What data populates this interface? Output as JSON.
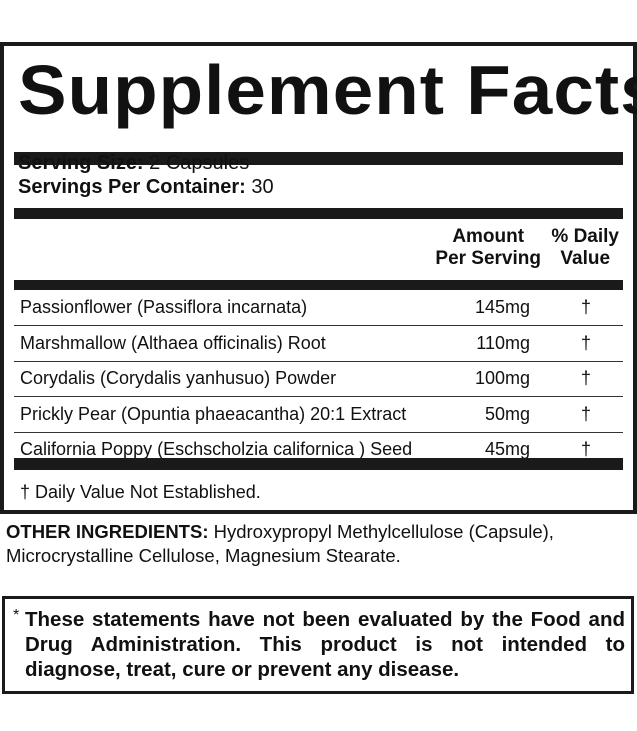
{
  "title": "Supplement Facts",
  "serving": {
    "size_label": "Serving Size:",
    "size_value": " 2 Capsules",
    "per_container_label": "Servings Per Container:",
    "per_container_value": " 30"
  },
  "columns": {
    "amount_line1": "Amount",
    "amount_line2": "Per Serving",
    "dv_line1": "% Daily",
    "dv_line2": "Value"
  },
  "ingredients": [
    {
      "name": "Passionflower (Passiflora incarnata)",
      "amount": "145mg",
      "dv": "†"
    },
    {
      "name": "Marshmallow (Althaea officinalis) Root",
      "amount": "110mg",
      "dv": "†"
    },
    {
      "name": "Corydalis (Corydalis yanhusuo) Powder",
      "amount": "100mg",
      "dv": "†"
    },
    {
      "name": "Prickly Pear (Opuntia phaeacantha) 20:1 Extract",
      "amount": "50mg",
      "dv": "†"
    },
    {
      "name": "California Poppy (Eschscholzia californica ) Seed",
      "amount": "45mg",
      "dv": "†"
    }
  ],
  "footnote": "† Daily Value Not Established.",
  "other_ingredients": {
    "label": "OTHER INGREDIENTS:",
    "text": " Hydroxypropyl Methylcellulose (Capsule), Microcrystalline Cellulose, Magnesium Stearate."
  },
  "disclaimer": {
    "mark": "*",
    "text": "These statements have not been evaluated by the Food and Drug Administration. This product is not intended to diagnose, treat, cure or prevent any disease."
  }
}
